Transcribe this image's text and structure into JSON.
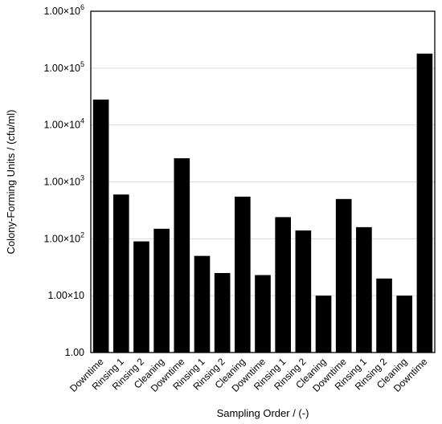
{
  "chart_data": {
    "type": "bar",
    "categories": [
      "Downtime",
      "Rinsing 1",
      "Rinsing 2",
      "Cleaning",
      "Downtime",
      "Rinsing 1",
      "Rinsing 2",
      "Cleaning",
      "Downtime",
      "Rinsing 1",
      "Rinsing 2",
      "Cleaning",
      "Downtime",
      "Rinsing 1",
      "Rinsing 2",
      "Cleaning",
      "Downtime"
    ],
    "values": [
      28000,
      600,
      90,
      150,
      2600,
      50,
      25,
      550,
      23,
      240,
      140,
      10,
      500,
      160,
      20,
      10,
      180000
    ],
    "xlabel": "Sampling Order / (-)",
    "ylabel": "Colony-Forming Units / (cfu/ml)",
    "yscale": "log",
    "ylim": [
      1,
      1000000
    ],
    "ytick_values": [
      1,
      10,
      100,
      1000,
      10000,
      100000,
      1000000
    ],
    "ytick_labels": [
      {
        "base": "1.00",
        "sup": ""
      },
      {
        "base": "1.00×10",
        "sup": ""
      },
      {
        "base": "1.00×10",
        "sup": "2"
      },
      {
        "base": "1.00×10",
        "sup": "3"
      },
      {
        "base": "1.00×10",
        "sup": "4"
      },
      {
        "base": "1.00×10",
        "sup": "5"
      },
      {
        "base": "1.00×10",
        "sup": "6"
      }
    ],
    "grid": true,
    "legend": "none",
    "colors": {
      "bar": "#000000",
      "grid": "#d9d9d9",
      "frame": "#000000"
    }
  }
}
